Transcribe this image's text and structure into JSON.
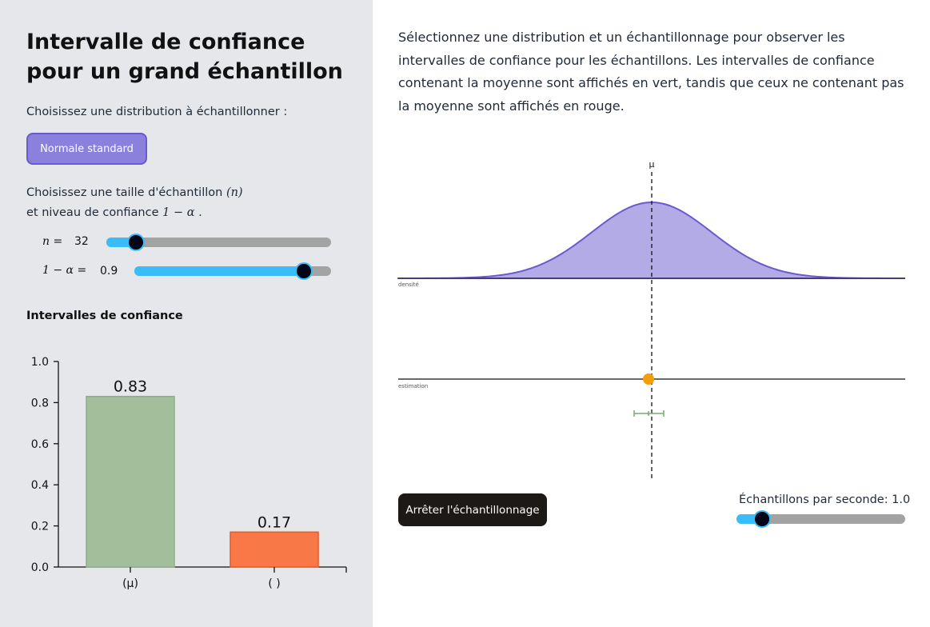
{
  "app": {
    "title": "Intervalle de confiance pour un grand échantillon"
  },
  "distribution": {
    "prompt": "Choisissez une distribution à échantillonner :",
    "button_label": "Normale standard"
  },
  "parameters": {
    "prompt_line1": "Choisissez une taille d'échantillon",
    "prompt_n_symbol": "(n)",
    "prompt_line2": "et niveau de confiance",
    "prompt_alpha_symbol": "1 − α",
    "prompt_end": ".",
    "n_label": "n =",
    "n_value": "32",
    "n_fraction": 0.13,
    "conf_label": "1 − α =",
    "conf_value": "0.9",
    "conf_fraction": 0.86
  },
  "intervals": {
    "heading": "Intervalles de confiance"
  },
  "description": "Sélectionnez une distribution et un échantillonnage pour observer les intervalles de confiance pour les échantillons. Les intervalles de confiance contenant la moyenne sont affichés en vert, tandis que ceux ne contenant pas la moyenne sont affichés en rouge.",
  "plot": {
    "mu_label": "μ",
    "density_label": "densité",
    "estimation_label": "estimation",
    "colors": {
      "curve_fill": "#b3abe6",
      "curve_stroke": "#6a59cf",
      "point": "#f59e0b",
      "interval": "#7aa874"
    }
  },
  "controls": {
    "stop_label": "Arrêter l'échantillonnage",
    "sps_label": "Échantillons par seconde: 1.0",
    "sps_fraction": 0.15
  },
  "chart_data": {
    "type": "bar",
    "categories": [
      "(μ)",
      "( )"
    ],
    "values": [
      0.83,
      0.17
    ],
    "value_labels": [
      "0.83",
      "0.17"
    ],
    "colors": [
      "#a3be9a",
      "#f97848"
    ],
    "ylim": [
      0,
      1.0
    ],
    "yticks": [
      "0.0",
      "0.2",
      "0.4",
      "0.6",
      "0.8",
      "1.0"
    ],
    "grid": false
  }
}
